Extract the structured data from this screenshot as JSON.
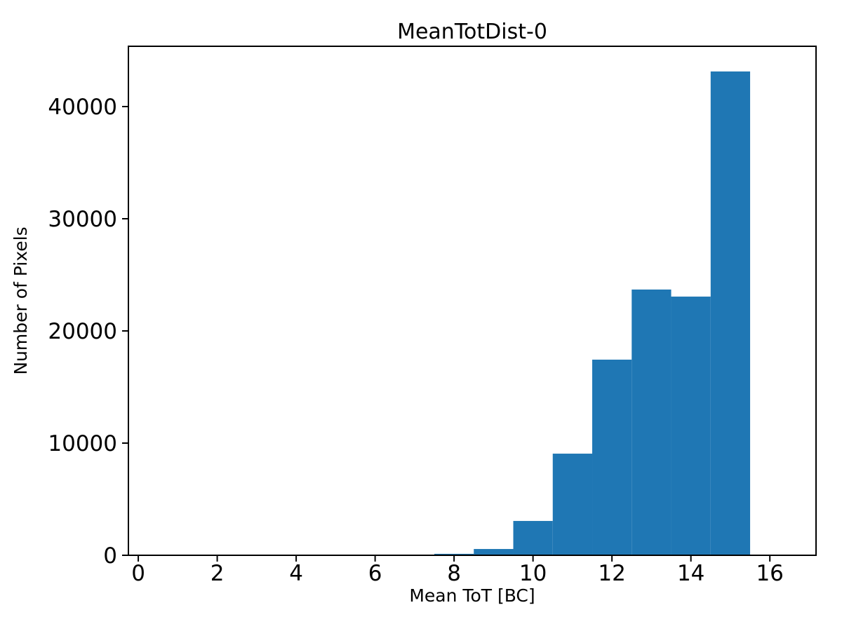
{
  "figure": {
    "background": "#ffffff"
  },
  "chart_data": {
    "type": "bar",
    "subtype": "histogram",
    "title": "MeanTotDist-0",
    "xlabel": "Mean ToT [BC]",
    "ylabel": "Number of Pixels",
    "bin_edges": [
      7.5,
      8.5,
      9.5,
      10.5,
      11.5,
      12.5,
      13.5,
      14.5,
      15.5
    ],
    "counts": [
      130,
      560,
      3060,
      9060,
      17440,
      23690,
      23060,
      43130
    ],
    "bar_color": "#1f77b4",
    "axis_color": "#000000",
    "text_color": "#000000",
    "xlim": [
      -0.25,
      17.17
    ],
    "ylim": [
      0,
      45375
    ],
    "x_ticks": [
      0,
      2,
      4,
      6,
      8,
      10,
      12,
      14,
      16
    ],
    "y_ticks": [
      0,
      10000,
      20000,
      30000,
      40000
    ],
    "grid": false,
    "legend": null
  }
}
